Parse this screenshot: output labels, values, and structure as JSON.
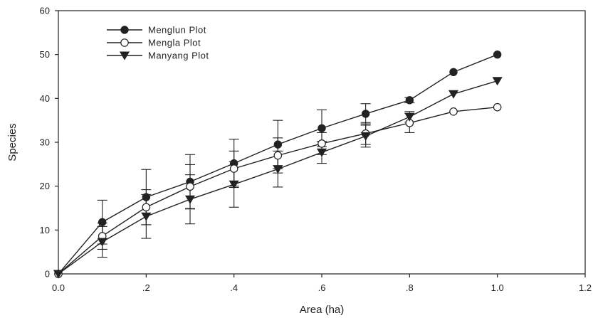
{
  "chart_data": {
    "type": "line",
    "xlabel": "Area (ha)",
    "ylabel": "Species",
    "xlim": [
      0,
      1.2
    ],
    "ylim": [
      0,
      60
    ],
    "x_ticks": [
      0,
      0.2,
      0.4,
      0.6,
      0.8,
      1.0,
      1.2
    ],
    "x_tick_labels": [
      "0.0",
      ".2",
      ".4",
      ".6",
      ".8",
      "1.0",
      "1.2"
    ],
    "y_ticks": [
      0,
      10,
      20,
      30,
      40,
      50,
      60
    ],
    "y_tick_labels": [
      "0",
      "10",
      "20",
      "30",
      "40",
      "50",
      "60"
    ],
    "grid": false,
    "legend_position": "top-left",
    "x": [
      0,
      0.1,
      0.2,
      0.3,
      0.4,
      0.5,
      0.6,
      0.7,
      0.8,
      0.9,
      1.0
    ],
    "series": [
      {
        "name": "Menglun Plot",
        "marker": "filled-circle",
        "values": [
          0,
          11.8,
          17.5,
          21.0,
          25.2,
          29.5,
          33.2,
          36.5,
          39.6,
          46.0,
          50.0
        ],
        "error": [
          0,
          5.0,
          6.3,
          6.2,
          5.5,
          5.5,
          4.2,
          2.3,
          0.6,
          0,
          0
        ]
      },
      {
        "name": "Mengla Plot",
        "marker": "open-circle",
        "values": [
          0,
          8.6,
          15.2,
          19.9,
          24.0,
          27.0,
          29.7,
          32.0,
          34.4,
          37.0,
          38.0
        ],
        "error": [
          0,
          3.0,
          4.0,
          5.0,
          4.0,
          4.0,
          2.5,
          2.5,
          2.2,
          0,
          0
        ]
      },
      {
        "name": "Manyang Plot",
        "marker": "filled-triangle-down",
        "values": [
          0,
          7.3,
          13.1,
          17.0,
          20.4,
          23.9,
          27.7,
          31.4,
          35.8,
          41.0,
          44.0
        ],
        "error": [
          0,
          3.5,
          5.0,
          5.6,
          5.2,
          4.1,
          2.5,
          2.5,
          1.2,
          0,
          0
        ]
      }
    ]
  }
}
